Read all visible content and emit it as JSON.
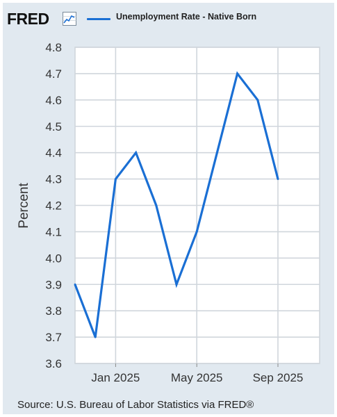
{
  "header": {
    "logo_text": "FRED",
    "logo_icon": "fred-line-chart-icon",
    "legend_label": "Unemployment Rate - Native Born"
  },
  "footer": {
    "source": "Source: U.S. Bureau of Labor Statistics via FRED®"
  },
  "colors": {
    "series": "#1a6fd4",
    "panel_background": "#e1e9f0",
    "plot_background": "#ffffff",
    "grid": "#d0d6dc"
  },
  "chart_data": {
    "type": "line",
    "title": "",
    "xlabel": "",
    "ylabel": "Percent",
    "x": [
      "2024-11",
      "2024-12",
      "2025-01",
      "2025-02",
      "2025-03",
      "2025-04",
      "2025-05",
      "2025-06",
      "2025-07",
      "2025-08",
      "2025-09"
    ],
    "x_ticks": [
      "Jan 2025",
      "May 2025",
      "Sep 2025"
    ],
    "x_tick_positions": [
      "2025-01",
      "2025-05",
      "2025-09"
    ],
    "y_ticks": [
      "3.6",
      "3.7",
      "3.8",
      "3.9",
      "4.0",
      "4.1",
      "4.2",
      "4.3",
      "4.4",
      "4.5",
      "4.6",
      "4.7",
      "4.8"
    ],
    "ylim": [
      3.6,
      4.8
    ],
    "grid": true,
    "legend_position": "top",
    "series": [
      {
        "name": "Unemployment Rate - Native Born",
        "values": [
          3.9,
          3.7,
          4.3,
          4.4,
          4.2,
          3.9,
          4.1,
          4.4,
          4.7,
          4.6,
          4.3
        ]
      }
    ]
  }
}
